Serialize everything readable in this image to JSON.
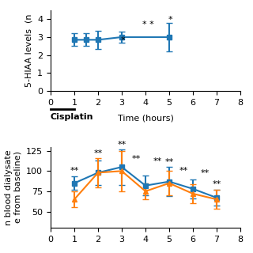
{
  "chart_data": [
    {
      "type": "line",
      "ylabel": "5-HIAA levels  (n",
      "xlabel": "Time (hours)",
      "x": [
        1.0,
        1.5,
        2.0,
        3.0,
        5.0
      ],
      "xlim": [
        0,
        8
      ],
      "ylim": [
        0,
        4.5
      ],
      "xticks": [
        0,
        1,
        2,
        3,
        4,
        5,
        6,
        7,
        8
      ],
      "yticks": [
        0,
        1,
        2,
        3,
        4
      ],
      "series": [
        {
          "values": [
            2.85,
            2.85,
            2.85,
            3.0,
            3.0
          ],
          "yerr": [
            0.35,
            0.35,
            0.5,
            0.3,
            0.8
          ],
          "marker": "square",
          "line_style": "solid"
        }
      ],
      "annotations": [
        {
          "text": "*",
          "x": 3.05,
          "y": 2.67
        },
        {
          "text": "*",
          "x": 5.05,
          "y": 3.82
        },
        {
          "text": "* *",
          "x": 4.1,
          "y": 3.55
        },
        {
          "text": "Cisplatin",
          "x_range": [
            0.0,
            1.0
          ]
        }
      ]
    },
    {
      "type": "line",
      "ylabel": "n blood dialysate\ne from baseline)",
      "x": [
        1,
        2,
        3,
        4,
        5,
        6,
        7
      ],
      "xlim": [
        0,
        8
      ],
      "ylim": [
        30,
        130
      ],
      "xticks": [
        0,
        1,
        2,
        3,
        4,
        5,
        6,
        7,
        8
      ],
      "yticks": [
        50,
        75,
        100,
        125
      ],
      "series": [
        {
          "values": [
            85,
            98,
            105,
            82,
            87,
            78,
            67
          ],
          "yerr": [
            8,
            15,
            22,
            12,
            18,
            12,
            10
          ],
          "marker": "square",
          "line_style": "solid"
        },
        {
          "values": [
            65,
            98,
            100,
            75,
            85,
            72,
            65
          ],
          "yerr": [
            10,
            18,
            25,
            10,
            15,
            12,
            12
          ],
          "marker": "triangle",
          "line_style": "solid"
        }
      ],
      "annotations": [
        {
          "text": "**",
          "x": 1.0,
          "y": 97
        },
        {
          "text": "**",
          "x": 2.0,
          "y": 119
        },
        {
          "text": "**",
          "x": 3.0,
          "y": 130
        },
        {
          "text": "**",
          "x": 3.6,
          "y": 112
        },
        {
          "text": "**",
          "x": 4.5,
          "y": 109
        },
        {
          "text": "**",
          "x": 5.0,
          "y": 108
        },
        {
          "text": "**",
          "x": 5.6,
          "y": 97
        },
        {
          "text": "**",
          "x": 6.5,
          "y": 94
        },
        {
          "text": "**",
          "x": 7.0,
          "y": 81
        }
      ]
    }
  ]
}
